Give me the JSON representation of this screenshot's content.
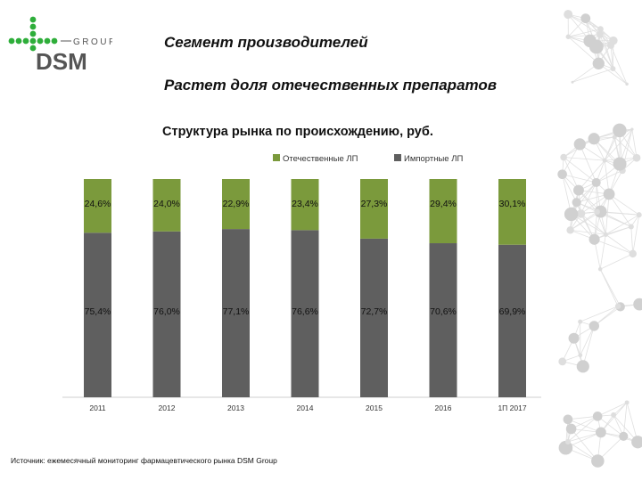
{
  "header": {
    "title": "Сегмент производителей",
    "subtitle": "Растет доля отечественных препаратов"
  },
  "logo": {
    "brand": "DSM",
    "group": "GROUP"
  },
  "colors": {
    "domestic": "#7b9a3c",
    "imported": "#5f5f5f",
    "logo_green": "#2eae3a",
    "logo_dark": "#555555"
  },
  "chart_data": {
    "type": "bar",
    "stacked": true,
    "title": "Структура рынка по происхождению, руб.",
    "categories": [
      "2011",
      "2012",
      "2013",
      "2014",
      "2015",
      "2016",
      "1П 2017"
    ],
    "series": [
      {
        "name": "Отечественные ЛП",
        "values": [
          24.6,
          24.0,
          22.9,
          23.4,
          27.3,
          29.4,
          30.1
        ],
        "labels": [
          "24,6%",
          "24,0%",
          "22,9%",
          "23,4%",
          "27,3%",
          "29,4%",
          "30,1%"
        ]
      },
      {
        "name": "Импортные ЛП",
        "values": [
          75.4,
          76.0,
          77.1,
          76.6,
          72.7,
          70.6,
          69.9
        ],
        "labels": [
          "75,4%",
          "76,0%",
          "77,1%",
          "76,6%",
          "72,7%",
          "70,6%",
          "69,9%"
        ]
      }
    ],
    "ylim": [
      0,
      100
    ],
    "legend": "top-right"
  },
  "source": "Источник: ежемесячный мониторинг фармацевтического рынка DSM Group"
}
